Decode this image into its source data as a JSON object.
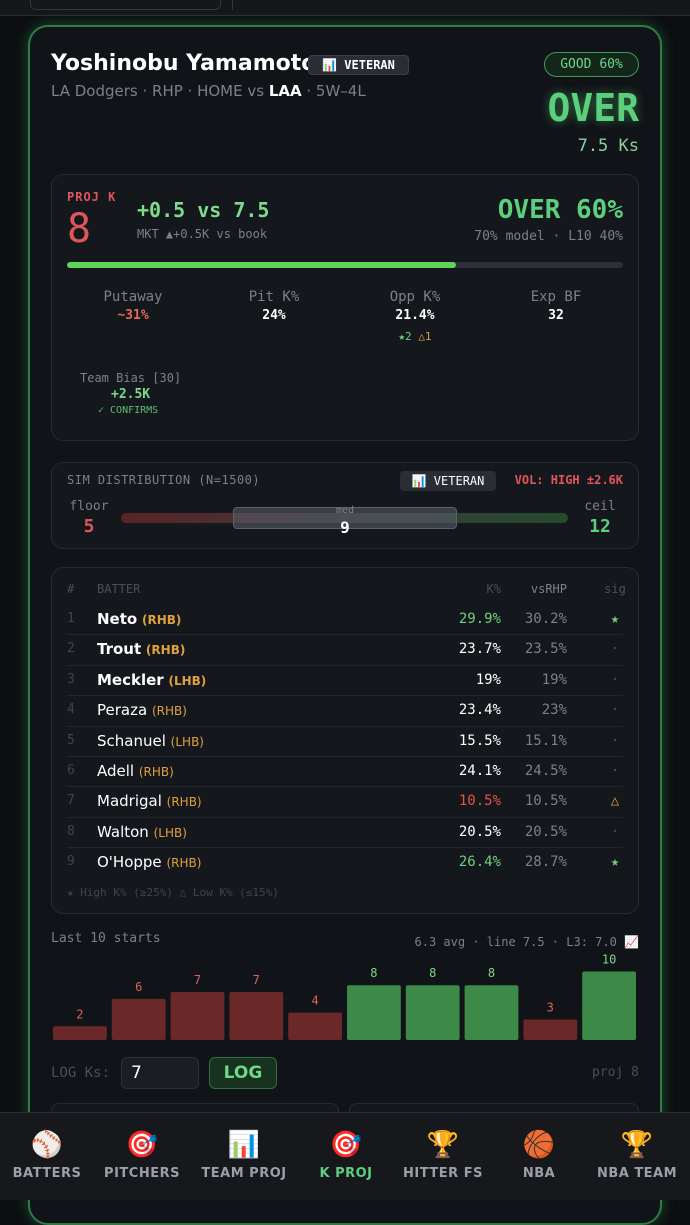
{
  "header": {
    "name": "Yoshinobu Yamamoto",
    "badge": "📊 VETERAN",
    "team": "LA Dodgers · RHP · HOME vs ",
    "opponent": "LAA",
    "record": " · 5W–4L",
    "grade": "GOOD 60%",
    "pick": "OVER",
    "line": "7.5 Ks"
  },
  "projection": {
    "label": "PROJ K",
    "value": "8",
    "edge": "+0.5 vs 7.5",
    "market": "MKT ▲+0.5K vs book",
    "pick": "OVER 60%",
    "model": "70% model · L10 40%",
    "stats": [
      {
        "label": "Putaway",
        "value": "~31%",
        "color": "#e86a5a"
      },
      {
        "label": "Pit K%",
        "value": "24%",
        "color": "#ffffff"
      },
      {
        "label": "Opp K%",
        "value": "21.4%",
        "color": "#ffffff"
      },
      {
        "label": "Exp BF",
        "value": "32",
        "color": "#ffffff"
      }
    ],
    "opp_flags": [
      "★2",
      "△1"
    ],
    "team_bias": {
      "label": "Team Bias [30]",
      "value": "+2.5K",
      "status": "✓ CONFIRMS"
    }
  },
  "simulation": {
    "title": "SIM DISTRIBUTION (N=1500)",
    "badge": "📊 VETERAN",
    "volatility": "VOL: HIGH ±2.6K",
    "floor_label": "floor",
    "floor": "5",
    "median_label": "med",
    "median": "9",
    "ceil_label": "ceil",
    "ceil": "12"
  },
  "lineup": {
    "columns": [
      "#",
      "BATTER",
      "K%",
      "vsRHP",
      "sig"
    ],
    "rows": [
      {
        "n": "1",
        "name": "Neto",
        "hand": "(RHB)",
        "k": "29.9%",
        "vs": "30.2%",
        "sig": "★",
        "bold": true,
        "k_color": "#6ed07e",
        "sig_color": "#6ed07e"
      },
      {
        "n": "2",
        "name": "Trout",
        "hand": "(RHB)",
        "k": "23.7%",
        "vs": "23.5%",
        "sig": "·",
        "bold": true,
        "k_color": "#ffffff",
        "sig_color": "#4a4f57"
      },
      {
        "n": "3",
        "name": "Meckler",
        "hand": "(LHB)",
        "k": "19%",
        "vs": "19%",
        "sig": "·",
        "bold": true,
        "k_color": "#ffffff",
        "sig_color": "#4a4f57"
      },
      {
        "n": "4",
        "name": "Peraza",
        "hand": "(RHB)",
        "k": "23.4%",
        "vs": "23%",
        "sig": "·",
        "bold": false,
        "k_color": "#ffffff",
        "sig_color": "#4a4f57"
      },
      {
        "n": "5",
        "name": "Schanuel",
        "hand": "(LHB)",
        "k": "15.5%",
        "vs": "15.1%",
        "sig": "·",
        "bold": false,
        "k_color": "#ffffff",
        "sig_color": "#4a4f57"
      },
      {
        "n": "6",
        "name": "Adell",
        "hand": "(RHB)",
        "k": "24.1%",
        "vs": "24.5%",
        "sig": "·",
        "bold": false,
        "k_color": "#ffffff",
        "sig_color": "#4a4f57"
      },
      {
        "n": "7",
        "name": "Madrigal",
        "hand": "(RHB)",
        "k": "10.5%",
        "vs": "10.5%",
        "sig": "△",
        "bold": false,
        "k_color": "#e5534b",
        "sig_color": "#e0a040"
      },
      {
        "n": "8",
        "name": "Walton",
        "hand": "(LHB)",
        "k": "20.5%",
        "vs": "20.5%",
        "sig": "·",
        "bold": false,
        "k_color": "#ffffff",
        "sig_color": "#4a4f57"
      },
      {
        "n": "9",
        "name": "O'Hoppe",
        "hand": "(RHB)",
        "k": "26.4%",
        "vs": "28.7%",
        "sig": "★",
        "bold": false,
        "k_color": "#6ed07e",
        "sig_color": "#6ed07e"
      }
    ],
    "legend": "★ High K% (≥25%) △ Low K% (≤15%)"
  },
  "chart_data": {
    "type": "bar",
    "title": "Last 10 starts",
    "summary": "6.3 avg · line 7.5 · L3: 7.0 📈",
    "values": [
      2,
      6,
      7,
      7,
      4,
      8,
      8,
      8,
      3,
      10
    ],
    "colors": [
      "#6b2828",
      "#6b2828",
      "#6b2828",
      "#6b2828",
      "#6b2828",
      "#3d8a48",
      "#3d8a48",
      "#3d8a48",
      "#6b2828",
      "#3d8a48"
    ],
    "label_colors": [
      "#e0605a",
      "#e0605a",
      "#e0605a",
      "#e0605a",
      "#e0605a",
      "#7fd68a",
      "#7fd68a",
      "#7fd68a",
      "#e0605a",
      "#7fd68a"
    ],
    "ylim": [
      0,
      10
    ]
  },
  "log": {
    "label": "LOG Ks:",
    "input": "7",
    "button": "LOG",
    "projection": "proj 8"
  },
  "nav": [
    {
      "icon": "⚾",
      "label": "BATTERS",
      "active": false
    },
    {
      "icon": "🎯",
      "label": "PITCHERS",
      "active": false
    },
    {
      "icon": "📊",
      "label": "TEAM PROJ",
      "active": false
    },
    {
      "icon": "🎯",
      "label": "K PROJ",
      "active": true
    },
    {
      "icon": "🏆",
      "label": "HITTER FS",
      "active": false
    },
    {
      "icon": "🏀",
      "label": "NBA",
      "active": false
    },
    {
      "icon": "🏆",
      "label": "NBA TEAM",
      "active": false
    }
  ]
}
